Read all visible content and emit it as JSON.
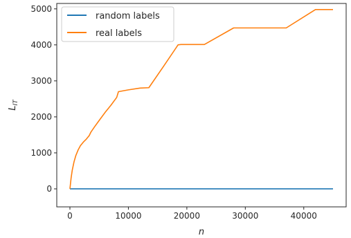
{
  "chart_data": {
    "type": "line",
    "title": "",
    "xlabel": "n",
    "ylabel_main": "L",
    "ylabel_sub": "IT",
    "xlim": [
      -2250,
      47250
    ],
    "ylim": [
      -500,
      5150
    ],
    "x_ticks": [
      0,
      10000,
      20000,
      30000,
      40000
    ],
    "y_ticks": [
      0,
      1000,
      2000,
      3000,
      4000,
      5000
    ],
    "grid": false,
    "legend_position": "top-left",
    "series": [
      {
        "name": "random labels",
        "color": "#1f77b4",
        "x": [
          0,
          45000
        ],
        "y": [
          0,
          0
        ]
      },
      {
        "name": "real labels",
        "color": "#ff7f0e",
        "x": [
          0,
          200,
          400,
          700,
          1000,
          1400,
          1800,
          2300,
          2800,
          3300,
          3600,
          4200,
          5000,
          6000,
          7000,
          8000,
          8300,
          10000,
          12000,
          13500,
          16000,
          18500,
          19000,
          23000,
          28000,
          32000,
          37000,
          42000,
          45000
        ],
        "y": [
          0,
          300,
          520,
          750,
          920,
          1080,
          1200,
          1300,
          1380,
          1480,
          1580,
          1720,
          1900,
          2120,
          2320,
          2540,
          2700,
          2750,
          2800,
          2810,
          3400,
          4000,
          4010,
          4010,
          4470,
          4470,
          4470,
          4980,
          4980
        ]
      }
    ]
  }
}
